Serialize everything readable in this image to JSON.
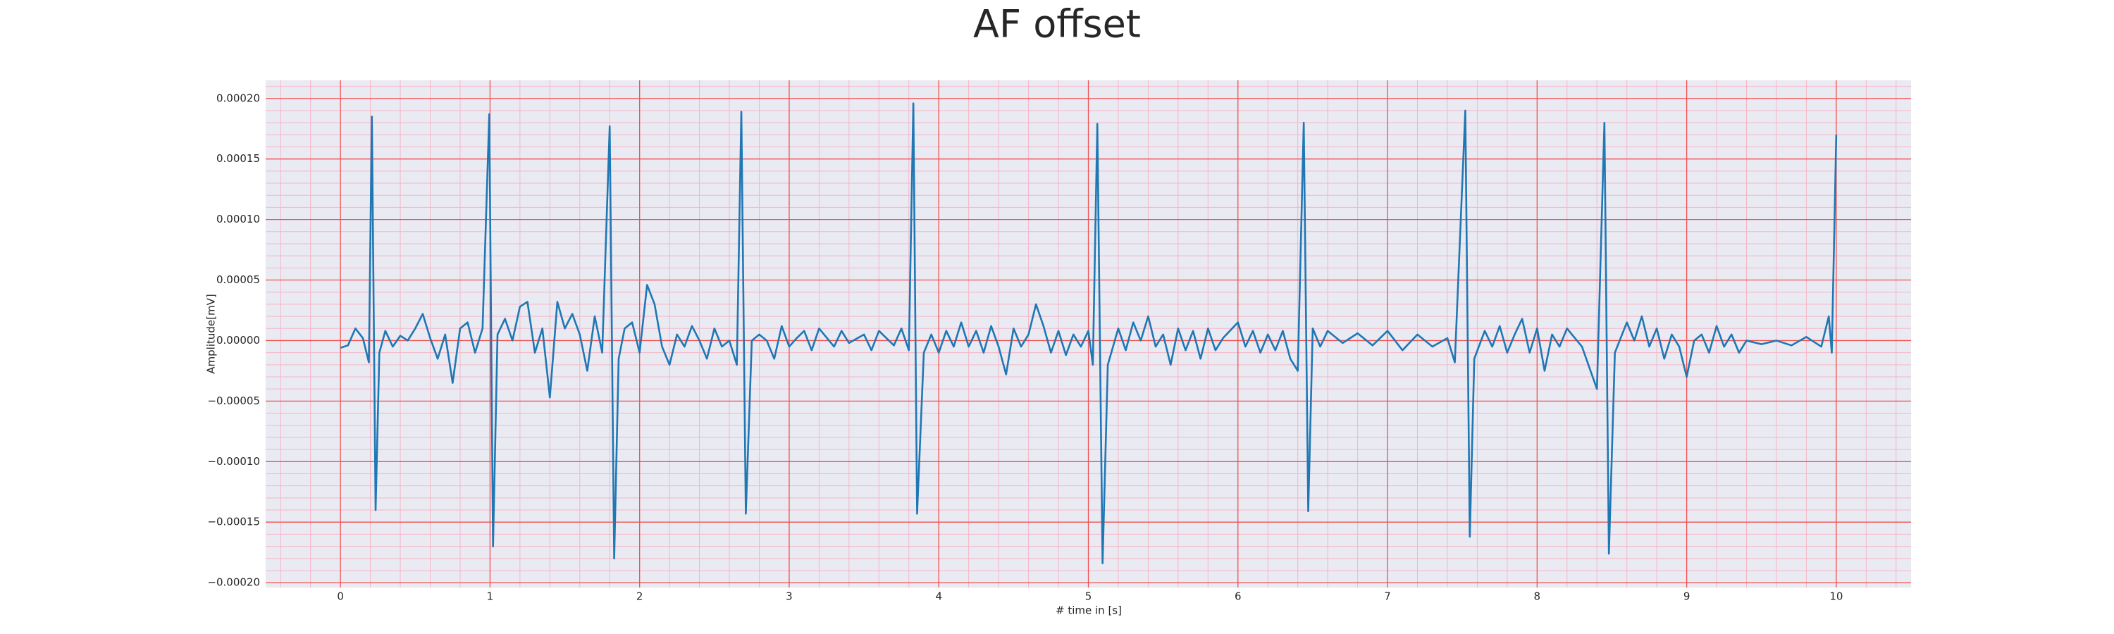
{
  "chart_data": {
    "type": "line",
    "title": "AF offset",
    "x_label": "# time in [s]",
    "y_label": "Amplitude[mV]",
    "grid": true,
    "xlim": [
      -0.5,
      10.5
    ],
    "ylim": [
      -0.000204,
      0.000215
    ],
    "xticks": [
      0,
      1,
      2,
      3,
      4,
      5,
      6,
      7,
      8,
      9,
      10
    ],
    "yticks": [
      {
        "value": -0.0002,
        "label": "−0.00020"
      },
      {
        "value": -0.00015,
        "label": "−0.00015"
      },
      {
        "value": -0.0001,
        "label": "−0.00010"
      },
      {
        "value": -5e-05,
        "label": "−0.00005"
      },
      {
        "value": 0,
        "label": "0.00000"
      },
      {
        "value": 5e-05,
        "label": "0.00005"
      },
      {
        "value": 0.0001,
        "label": "0.00010"
      },
      {
        "value": 0.00015,
        "label": "0.00015"
      },
      {
        "value": 0.0002,
        "label": "0.00020"
      }
    ],
    "series": [
      {
        "color": "#1f77b4",
        "x": [
          0.0,
          0.05,
          0.1,
          0.15,
          0.19,
          0.21,
          0.235,
          0.26,
          0.3,
          0.35,
          0.4,
          0.45,
          0.5,
          0.55,
          0.6,
          0.65,
          0.7,
          0.75,
          0.8,
          0.85,
          0.9,
          0.95,
          0.995,
          1.02,
          1.05,
          1.1,
          1.15,
          1.2,
          1.25,
          1.3,
          1.35,
          1.4,
          1.45,
          1.5,
          1.55,
          1.6,
          1.65,
          1.7,
          1.75,
          1.8,
          1.83,
          1.86,
          1.9,
          1.95,
          2.0,
          2.05,
          2.1,
          2.15,
          2.2,
          2.25,
          2.3,
          2.35,
          2.4,
          2.45,
          2.5,
          2.55,
          2.6,
          2.65,
          2.68,
          2.71,
          2.75,
          2.8,
          2.85,
          2.9,
          2.95,
          3.0,
          3.05,
          3.1,
          3.15,
          3.2,
          3.3,
          3.35,
          3.4,
          3.5,
          3.55,
          3.6,
          3.7,
          3.75,
          3.8,
          3.83,
          3.855,
          3.9,
          3.95,
          4.0,
          4.05,
          4.1,
          4.15,
          4.2,
          4.25,
          4.3,
          4.35,
          4.4,
          4.45,
          4.5,
          4.55,
          4.6,
          4.65,
          4.7,
          4.75,
          4.8,
          4.85,
          4.9,
          4.95,
          5.0,
          5.03,
          5.06,
          5.095,
          5.13,
          5.2,
          5.25,
          5.3,
          5.35,
          5.4,
          5.45,
          5.5,
          5.55,
          5.6,
          5.65,
          5.7,
          5.75,
          5.8,
          5.85,
          5.9,
          6.0,
          6.05,
          6.1,
          6.15,
          6.2,
          6.25,
          6.3,
          6.35,
          6.4,
          6.44,
          6.47,
          6.5,
          6.55,
          6.6,
          6.7,
          6.8,
          6.9,
          7.0,
          7.1,
          7.2,
          7.3,
          7.4,
          7.45,
          7.52,
          7.55,
          7.58,
          7.65,
          7.7,
          7.75,
          7.8,
          7.85,
          7.9,
          7.95,
          8.0,
          8.05,
          8.1,
          8.15,
          8.2,
          8.3,
          8.4,
          8.45,
          8.48,
          8.52,
          8.6,
          8.65,
          8.7,
          8.75,
          8.8,
          8.85,
          8.9,
          8.95,
          9.0,
          9.05,
          9.1,
          9.15,
          9.2,
          9.25,
          9.3,
          9.35,
          9.4,
          9.5,
          9.6,
          9.7,
          9.8,
          9.9,
          9.95,
          9.97,
          10.0
        ],
        "values": [
          -6e-06,
          -4e-06,
          1e-05,
          2e-06,
          -1.8e-05,
          0.000185,
          -0.00014,
          -1e-05,
          8e-06,
          -5e-06,
          4e-06,
          0.0,
          1e-05,
          2.2e-05,
          2e-06,
          -1.5e-05,
          5e-06,
          -3.5e-05,
          1e-05,
          1.5e-05,
          -1e-05,
          1e-05,
          0.000187,
          -0.00017,
          5e-06,
          1.8e-05,
          0.0,
          2.8e-05,
          3.2e-05,
          -1e-05,
          1e-05,
          -4.7e-05,
          3.2e-05,
          1e-05,
          2.2e-05,
          5e-06,
          -2.5e-05,
          2e-05,
          -1e-05,
          0.000177,
          -0.00018,
          -1.5e-05,
          1e-05,
          1.5e-05,
          -1e-05,
          4.6e-05,
          3e-05,
          -5e-06,
          -2e-05,
          5e-06,
          -5e-06,
          1.2e-05,
          0.0,
          -1.5e-05,
          1e-05,
          -5e-06,
          0.0,
          -2e-05,
          0.000189,
          -0.000143,
          0.0,
          5e-06,
          0.0,
          -1.5e-05,
          1.2e-05,
          -5e-06,
          2e-06,
          8e-06,
          -8e-06,
          1e-05,
          -5e-06,
          8e-06,
          -2e-06,
          5e-06,
          -8e-06,
          8e-06,
          -4e-06,
          1e-05,
          -8e-06,
          0.000196,
          -0.000143,
          -1e-05,
          5e-06,
          -1e-05,
          8e-06,
          -5e-06,
          1.5e-05,
          -5e-06,
          8e-06,
          -1e-05,
          1.2e-05,
          -5e-06,
          -2.8e-05,
          1e-05,
          -5e-06,
          5e-06,
          3e-05,
          1.2e-05,
          -1e-05,
          8e-06,
          -1.2e-05,
          5e-06,
          -5e-06,
          8e-06,
          -2e-05,
          0.000179,
          -0.000184,
          -2e-05,
          1e-05,
          -8e-06,
          1.5e-05,
          0.0,
          2e-05,
          -5e-06,
          5e-06,
          -2e-05,
          1e-05,
          -8e-06,
          8e-06,
          -1.5e-05,
          1e-05,
          -8e-06,
          2e-06,
          1.5e-05,
          -5e-06,
          8e-06,
          -1e-05,
          5e-06,
          -8e-06,
          8e-06,
          -1.5e-05,
          -2.5e-05,
          0.00018,
          -0.000141,
          1e-05,
          -5e-06,
          8e-06,
          -2e-06,
          6e-06,
          -4e-06,
          8e-06,
          -8e-06,
          5e-06,
          -5e-06,
          2e-06,
          -1.8e-05,
          0.00019,
          -0.000162,
          -1.5e-05,
          8e-06,
          -5e-06,
          1.2e-05,
          -1e-05,
          5e-06,
          1.8e-05,
          -1e-05,
          1e-05,
          -2.5e-05,
          5e-06,
          -5e-06,
          1e-05,
          -5e-06,
          -4e-05,
          0.00018,
          -0.000176,
          -1e-05,
          1.5e-05,
          0.0,
          2e-05,
          -5e-06,
          1e-05,
          -1.5e-05,
          5e-06,
          -5e-06,
          -3e-05,
          0.0,
          5e-06,
          -1e-05,
          1.2e-05,
          -5e-06,
          5e-06,
          -1e-05,
          0.0,
          -3e-06,
          0.0,
          -4e-06,
          3e-06,
          -5e-06,
          2e-05,
          -1e-05,
          0.00017
        ]
      }
    ]
  }
}
